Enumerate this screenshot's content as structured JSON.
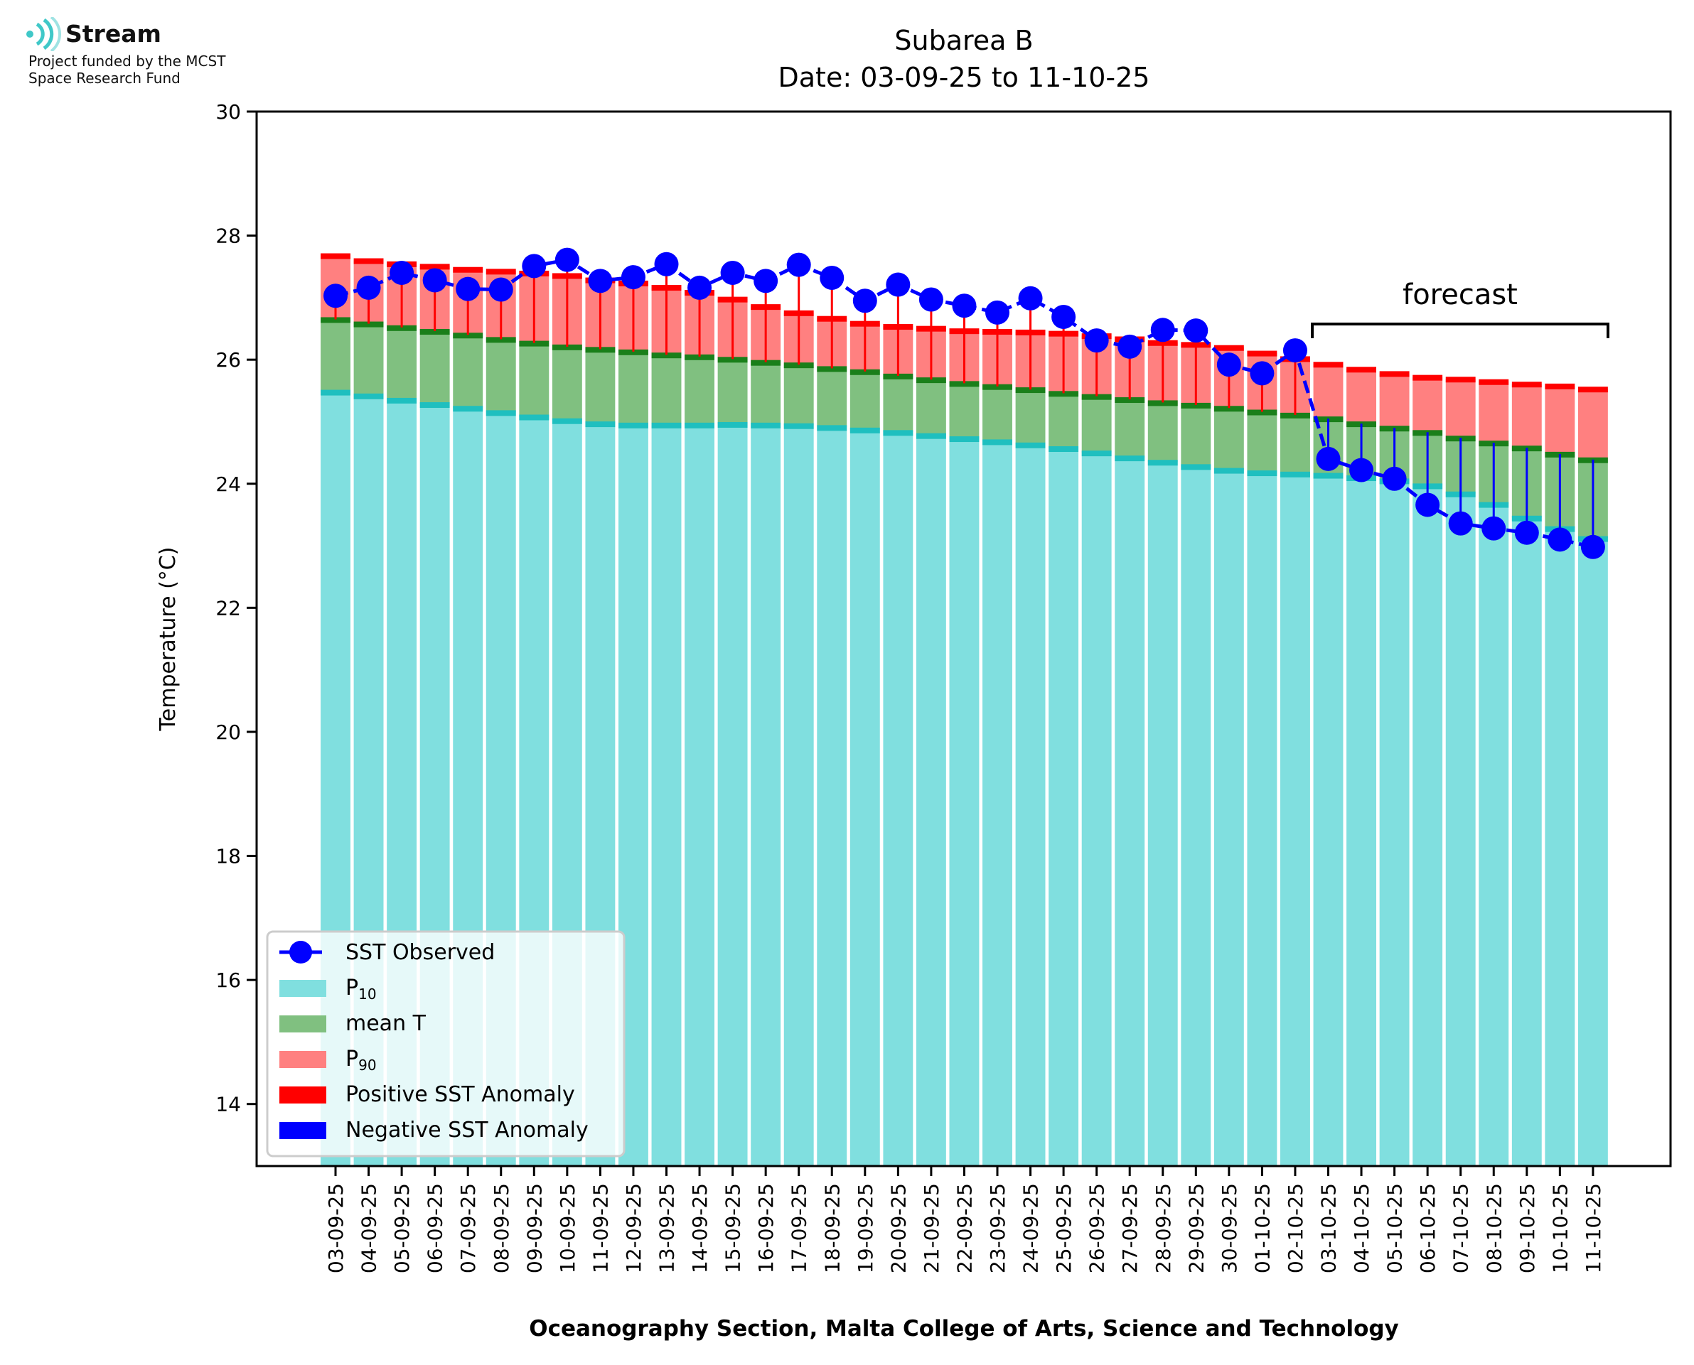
{
  "logo": {
    "name": "Stream",
    "subtitle_line1": "Project funded by the MCST",
    "subtitle_line2": "Space Research Fund"
  },
  "chart_data": {
    "type": "bar",
    "title_line1": "Subarea B",
    "title_line2": "Date: 03-09-25 to 11-10-25",
    "xlabel": "Oceanography Section, Malta College of Arts, Science and Technology",
    "ylabel": "Temperature (°C)",
    "ylim": [
      13,
      30
    ],
    "yticks": [
      14,
      16,
      18,
      20,
      22,
      24,
      26,
      28,
      30
    ],
    "grid": false,
    "legend_position": "lower-left",
    "annotation": "forecast",
    "forecast_range": [
      "03-10-25",
      "11-10-25"
    ],
    "categories": [
      "03-09-25",
      "04-09-25",
      "05-09-25",
      "06-09-25",
      "07-09-25",
      "08-09-25",
      "09-09-25",
      "10-09-25",
      "11-09-25",
      "12-09-25",
      "13-09-25",
      "14-09-25",
      "15-09-25",
      "16-09-25",
      "17-09-25",
      "18-09-25",
      "19-09-25",
      "20-09-25",
      "21-09-25",
      "22-09-25",
      "23-09-25",
      "24-09-25",
      "25-09-25",
      "26-09-25",
      "27-09-25",
      "28-09-25",
      "29-09-25",
      "30-09-25",
      "01-10-25",
      "02-10-25",
      "03-10-25",
      "04-10-25",
      "05-10-25",
      "06-10-25",
      "07-10-25",
      "08-10-25",
      "09-10-25",
      "10-10-25",
      "11-10-25"
    ],
    "series": [
      {
        "name": "SST Observed",
        "kind": "line",
        "color": "#0000ff",
        "values": [
          27.03,
          27.16,
          27.4,
          27.28,
          27.14,
          27.13,
          27.51,
          27.61,
          27.27,
          27.33,
          27.54,
          27.16,
          27.4,
          27.27,
          27.53,
          27.32,
          26.95,
          27.21,
          26.97,
          26.87,
          26.76,
          26.99,
          26.69,
          26.31,
          26.21,
          26.48,
          26.47,
          25.92,
          25.78,
          26.15,
          24.4,
          24.22,
          24.08,
          23.66,
          23.36,
          23.28,
          23.21,
          23.1,
          22.98
        ]
      },
      {
        "name": "P10",
        "kind": "bar",
        "color": "#80dfdf",
        "edge_color": "#1fbfbf",
        "values": [
          25.48,
          25.42,
          25.35,
          25.28,
          25.22,
          25.15,
          25.08,
          25.02,
          24.97,
          24.95,
          24.95,
          24.95,
          24.96,
          24.95,
          24.94,
          24.91,
          24.87,
          24.83,
          24.78,
          24.73,
          24.68,
          24.63,
          24.57,
          24.5,
          24.42,
          24.35,
          24.28,
          24.22,
          24.18,
          24.16,
          24.14,
          24.1,
          24.05,
          23.97,
          23.84,
          23.67,
          23.45,
          23.28,
          23.12
        ]
      },
      {
        "name": "mean T",
        "kind": "bar",
        "color": "#80c080",
        "edge_color": "#1a7f1a",
        "values": [
          26.65,
          26.58,
          26.52,
          26.46,
          26.4,
          26.33,
          26.27,
          26.21,
          26.17,
          26.13,
          26.08,
          26.05,
          26.01,
          25.96,
          25.92,
          25.86,
          25.81,
          25.74,
          25.68,
          25.62,
          25.57,
          25.52,
          25.46,
          25.41,
          25.36,
          25.31,
          25.27,
          25.22,
          25.16,
          25.11,
          25.05,
          24.97,
          24.9,
          24.83,
          24.74,
          24.66,
          24.58,
          24.48,
          24.39
        ]
      },
      {
        "name": "P90",
        "kind": "bar",
        "color": "#ff8080",
        "edge_color": "#ff0000",
        "values": [
          27.68,
          27.6,
          27.55,
          27.51,
          27.46,
          27.43,
          27.4,
          27.36,
          27.29,
          27.24,
          27.17,
          27.09,
          26.98,
          26.86,
          26.76,
          26.67,
          26.59,
          26.54,
          26.51,
          26.47,
          26.46,
          26.45,
          26.43,
          26.39,
          26.34,
          26.28,
          26.25,
          26.2,
          26.11,
          26.02,
          25.93,
          25.85,
          25.78,
          25.72,
          25.69,
          25.65,
          25.61,
          25.58,
          25.53
        ]
      }
    ],
    "anomaly_legend": [
      {
        "name": "Positive SST Anomaly",
        "color": "#ff0000"
      },
      {
        "name": "Negative SST Anomaly",
        "color": "#0000ff"
      }
    ]
  }
}
